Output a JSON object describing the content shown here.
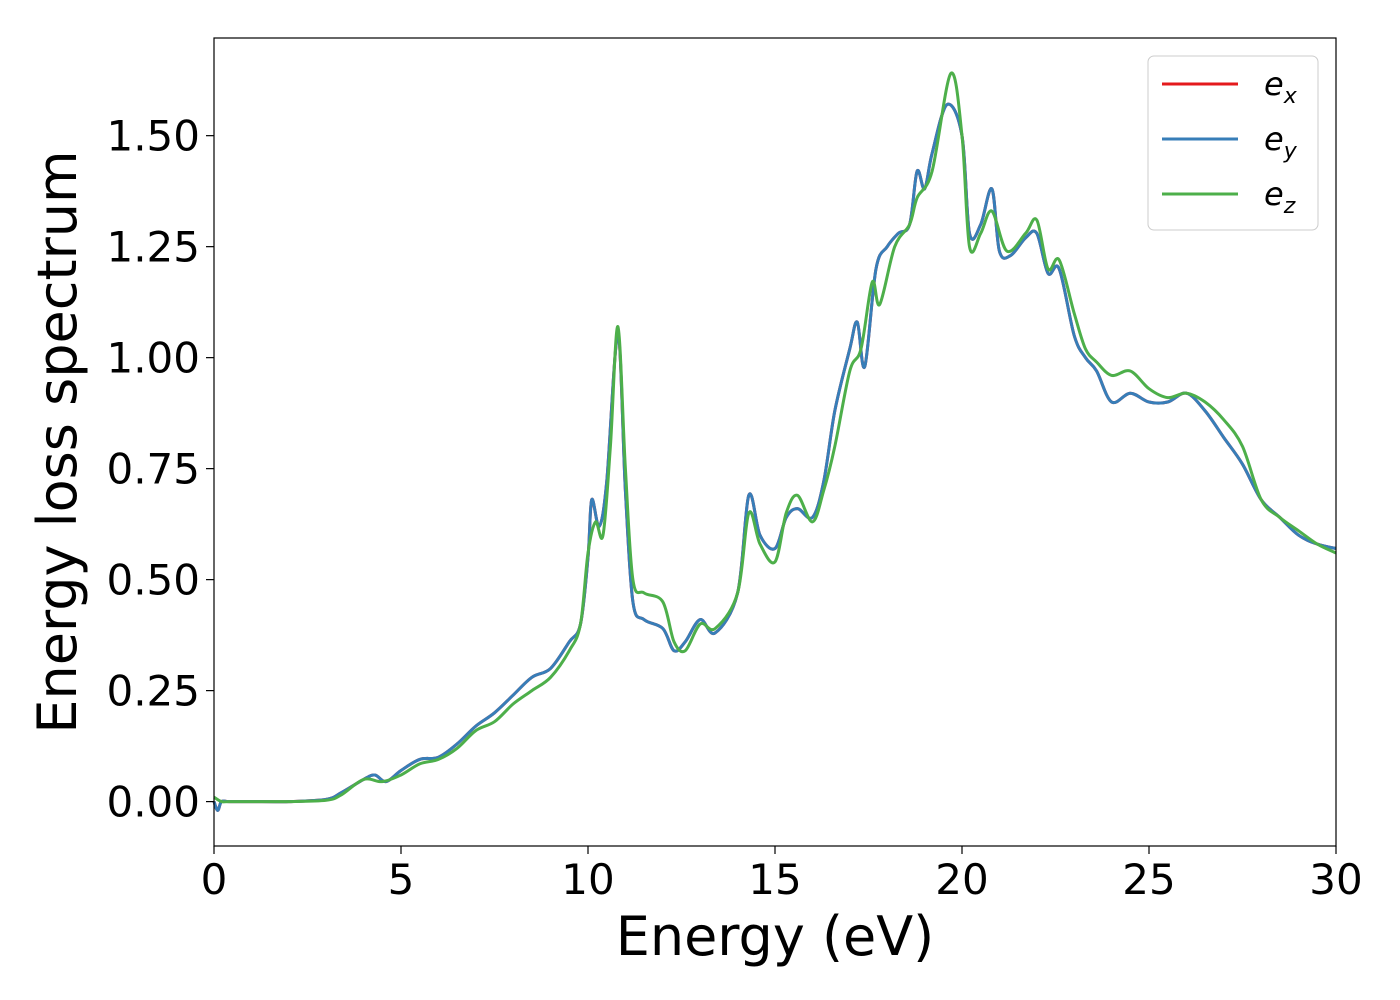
{
  "chart_data": {
    "type": "line",
    "title": "",
    "xlabel": "Energy (eV)",
    "ylabel": "Energy loss spectrum",
    "xlim": [
      0,
      30
    ],
    "ylim": [
      -0.1,
      1.72
    ],
    "xticks": [
      0,
      5,
      10,
      15,
      20,
      25,
      30
    ],
    "xtick_labels": [
      "0",
      "5",
      "10",
      "15",
      "20",
      "25",
      "30"
    ],
    "yticks": [
      0.0,
      0.25,
      0.5,
      0.75,
      1.0,
      1.25,
      1.5
    ],
    "ytick_labels": [
      "0.00",
      "0.25",
      "0.50",
      "0.75",
      "1.00",
      "1.25",
      "1.50"
    ],
    "grid": false,
    "legend_position": "top-right",
    "series": [
      {
        "name": "e_x",
        "label_base": "e",
        "label_sub": "x",
        "color": "#e41a1c",
        "x": [
          0,
          0.1,
          0.2,
          0.4,
          1,
          2,
          3,
          3.4,
          4,
          4.3,
          4.6,
          5,
          5.5,
          6,
          6.5,
          7,
          7.5,
          8,
          8.5,
          9,
          9.5,
          9.8,
          10,
          10.1,
          10.3,
          10.5,
          10.8,
          11,
          11.2,
          11.5,
          12,
          12.3,
          12.6,
          13,
          13.4,
          14,
          14.3,
          14.6,
          15,
          15.3,
          15.6,
          16,
          16.3,
          16.6,
          17,
          17.2,
          17.4,
          17.7,
          18,
          18.3,
          18.6,
          18.8,
          19,
          19.2,
          19.6,
          20,
          20.2,
          20.5,
          20.8,
          21,
          21.3,
          21.7,
          22,
          22.3,
          22.6,
          23,
          23.3,
          23.6,
          24,
          24.5,
          25,
          25.5,
          26,
          26.5,
          27,
          27.5,
          28,
          28.5,
          29,
          29.5,
          30
        ],
        "y": [
          0.0,
          -0.02,
          0.0,
          0.0,
          0.0,
          0.0,
          0.005,
          0.02,
          0.05,
          0.06,
          0.045,
          0.07,
          0.095,
          0.1,
          0.13,
          0.17,
          0.2,
          0.24,
          0.28,
          0.3,
          0.36,
          0.4,
          0.55,
          0.68,
          0.62,
          0.72,
          1.05,
          0.7,
          0.45,
          0.41,
          0.39,
          0.34,
          0.36,
          0.41,
          0.38,
          0.47,
          0.69,
          0.6,
          0.57,
          0.64,
          0.66,
          0.64,
          0.72,
          0.88,
          1.02,
          1.08,
          0.98,
          1.2,
          1.25,
          1.28,
          1.3,
          1.42,
          1.38,
          1.46,
          1.57,
          1.5,
          1.28,
          1.3,
          1.38,
          1.24,
          1.23,
          1.27,
          1.28,
          1.19,
          1.2,
          1.05,
          1.0,
          0.97,
          0.9,
          0.92,
          0.9,
          0.9,
          0.92,
          0.88,
          0.82,
          0.76,
          0.68,
          0.64,
          0.6,
          0.58,
          0.57
        ]
      },
      {
        "name": "e_y",
        "label_base": "e",
        "label_sub": "y",
        "color": "#377eb8",
        "x": [
          0,
          0.1,
          0.2,
          0.4,
          1,
          2,
          3,
          3.4,
          4,
          4.3,
          4.6,
          5,
          5.5,
          6,
          6.5,
          7,
          7.5,
          8,
          8.5,
          9,
          9.5,
          9.8,
          10,
          10.1,
          10.3,
          10.5,
          10.8,
          11,
          11.2,
          11.5,
          12,
          12.3,
          12.6,
          13,
          13.4,
          14,
          14.3,
          14.6,
          15,
          15.3,
          15.6,
          16,
          16.3,
          16.6,
          17,
          17.2,
          17.4,
          17.7,
          18,
          18.3,
          18.6,
          18.8,
          19,
          19.2,
          19.6,
          20,
          20.2,
          20.5,
          20.8,
          21,
          21.3,
          21.7,
          22,
          22.3,
          22.6,
          23,
          23.3,
          23.6,
          24,
          24.5,
          25,
          25.5,
          26,
          26.5,
          27,
          27.5,
          28,
          28.5,
          29,
          29.5,
          30
        ],
        "y": [
          0.0,
          -0.02,
          0.0,
          0.0,
          0.0,
          0.0,
          0.005,
          0.02,
          0.05,
          0.06,
          0.045,
          0.07,
          0.095,
          0.1,
          0.13,
          0.17,
          0.2,
          0.24,
          0.28,
          0.3,
          0.36,
          0.4,
          0.55,
          0.68,
          0.62,
          0.72,
          1.05,
          0.7,
          0.45,
          0.41,
          0.39,
          0.34,
          0.36,
          0.41,
          0.38,
          0.47,
          0.69,
          0.6,
          0.57,
          0.64,
          0.66,
          0.64,
          0.72,
          0.88,
          1.02,
          1.08,
          0.98,
          1.2,
          1.25,
          1.28,
          1.3,
          1.42,
          1.38,
          1.46,
          1.57,
          1.5,
          1.28,
          1.3,
          1.38,
          1.24,
          1.23,
          1.27,
          1.28,
          1.19,
          1.2,
          1.05,
          1.0,
          0.97,
          0.9,
          0.92,
          0.9,
          0.9,
          0.92,
          0.88,
          0.82,
          0.76,
          0.68,
          0.64,
          0.6,
          0.58,
          0.57
        ]
      },
      {
        "name": "e_z",
        "label_base": "e",
        "label_sub": "z",
        "color": "#4daf4a",
        "x": [
          0,
          0.2,
          0.4,
          1,
          2,
          3,
          3.4,
          4,
          4.5,
          5,
          5.5,
          6,
          6.5,
          7,
          7.5,
          8,
          8.5,
          9,
          9.5,
          9.8,
          10,
          10.2,
          10.4,
          10.6,
          10.8,
          11,
          11.2,
          11.5,
          12,
          12.3,
          12.6,
          13,
          13.4,
          14,
          14.3,
          14.6,
          15,
          15.3,
          15.6,
          16,
          16.3,
          16.6,
          17,
          17.3,
          17.6,
          17.8,
          18.2,
          18.6,
          18.8,
          19.2,
          19.7,
          20,
          20.2,
          20.5,
          20.8,
          21.2,
          21.7,
          22,
          22.3,
          22.6,
          23,
          23.3,
          23.6,
          24,
          24.5,
          25,
          25.5,
          26,
          26.5,
          27,
          27.5,
          28,
          28.5,
          29,
          29.5,
          30
        ],
        "y": [
          0.01,
          0.0,
          0.0,
          0.0,
          0.0,
          0.003,
          0.015,
          0.05,
          0.045,
          0.06,
          0.085,
          0.095,
          0.12,
          0.16,
          0.18,
          0.22,
          0.25,
          0.28,
          0.34,
          0.4,
          0.56,
          0.63,
          0.6,
          0.8,
          1.07,
          0.75,
          0.5,
          0.47,
          0.45,
          0.36,
          0.34,
          0.4,
          0.39,
          0.47,
          0.65,
          0.58,
          0.54,
          0.65,
          0.69,
          0.63,
          0.7,
          0.8,
          0.97,
          1.02,
          1.17,
          1.12,
          1.25,
          1.3,
          1.36,
          1.42,
          1.64,
          1.5,
          1.25,
          1.28,
          1.33,
          1.24,
          1.28,
          1.31,
          1.2,
          1.22,
          1.1,
          1.02,
          0.99,
          0.96,
          0.97,
          0.93,
          0.91,
          0.92,
          0.9,
          0.86,
          0.8,
          0.68,
          0.64,
          0.61,
          0.58,
          0.56
        ]
      }
    ]
  }
}
